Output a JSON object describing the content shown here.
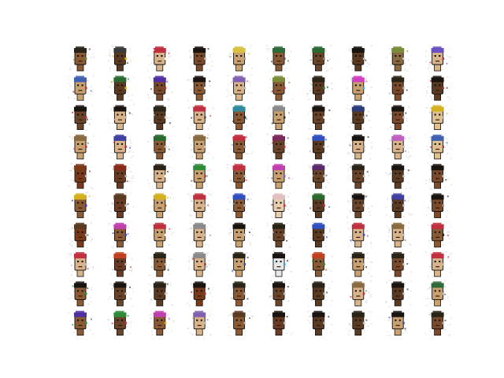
{
  "grid": {
    "rows": 10,
    "cols": 10
  },
  "samples": [
    [
      {
        "skin": "#8a5a35",
        "hair": "#2a2418",
        "accent": "#7a8c3a"
      },
      {
        "skin": "#5b3a22",
        "hair": "#3a3a3a",
        "accent": "#d4b020"
      },
      {
        "skin": "#d9b48a",
        "hair": "#c03040",
        "accent": "#ffffff"
      },
      {
        "skin": "#7a4a2a",
        "hair": "#1a1410",
        "accent": "#c8b89a"
      },
      {
        "skin": "#c9a070",
        "hair": "#d8c040",
        "accent": "#a0a0a0"
      },
      {
        "skin": "#8a5a35",
        "hair": "#2f6b3a",
        "accent": "#505050"
      },
      {
        "skin": "#6a4428",
        "hair": "#2a6a30",
        "accent": "#909090"
      },
      {
        "skin": "#5b3a22",
        "hair": "#1a1410",
        "accent": "#b0b0b0"
      },
      {
        "skin": "#8a6a40",
        "hair": "#7a8c3a",
        "accent": "#d0d0d0"
      },
      {
        "skin": "#d9b48a",
        "hair": "#6a50c0",
        "accent": "#c03040"
      }
    ],
    [
      {
        "skin": "#c9a070",
        "hair": "#4060b0",
        "accent": "#c03040"
      },
      {
        "skin": "#5b3a22",
        "hair": "#2a6a30",
        "accent": "#d4b020"
      },
      {
        "skin": "#7a4a2a",
        "hair": "#5030a0",
        "accent": "#c03040"
      },
      {
        "skin": "#8a5a35",
        "hair": "#1a1410",
        "accent": "#ffffff"
      },
      {
        "skin": "#d9b48a",
        "hair": "#8060b0",
        "accent": "#c0c0c0"
      },
      {
        "skin": "#8a5a35",
        "hair": "#7a8c3a",
        "accent": "#c03040"
      },
      {
        "skin": "#5b3a22",
        "hair": "#2a2418",
        "accent": "#2f8a3a"
      },
      {
        "skin": "#c9a070",
        "hair": "#d040c0",
        "accent": "#40c0d0"
      },
      {
        "skin": "#7a4a2a",
        "hair": "#2a2418",
        "accent": "#b0b0b0"
      },
      {
        "skin": "#5b3a22",
        "hair": "#1a1410",
        "accent": "#c03040"
      }
    ],
    [
      {
        "skin": "#6a4428",
        "hair": "#1a1410",
        "accent": "#c03040"
      },
      {
        "skin": "#d9b48a",
        "hair": "#1a1410",
        "accent": "#c0c0c0"
      },
      {
        "skin": "#5b3a22",
        "hair": "#2a2418",
        "accent": "#d0d0d0"
      },
      {
        "skin": "#d9b48a",
        "hair": "#c03040",
        "accent": "#505050"
      },
      {
        "skin": "#8a5a35",
        "hair": "#2f8a9a",
        "accent": "#202020"
      },
      {
        "skin": "#c9a070",
        "hair": "#8a8a8a",
        "accent": "#303030"
      },
      {
        "skin": "#6a4428",
        "hair": "#1a1410",
        "accent": "#ffffff"
      },
      {
        "skin": "#5b3a22",
        "hair": "#2a3a7a",
        "accent": "#b0b0b0"
      },
      {
        "skin": "#7a4a2a",
        "hair": "#1a1410",
        "accent": "#c0c0c0"
      },
      {
        "skin": "#e0c090",
        "hair": "#d4b020",
        "accent": "#c0c0c0"
      }
    ],
    [
      {
        "skin": "#c9a070",
        "hair": "#8a6a40",
        "accent": "#c03040"
      },
      {
        "skin": "#d9b48a",
        "hair": "#4040a0",
        "accent": "#c03040"
      },
      {
        "skin": "#8a5a35",
        "hair": "#2a6a30",
        "accent": "#c0c0c0"
      },
      {
        "skin": "#c9a070",
        "hair": "#8a6a40",
        "accent": "#d0d0d0"
      },
      {
        "skin": "#8a5a35",
        "hair": "#c03040",
        "accent": "#a0a0a0"
      },
      {
        "skin": "#6a4428",
        "hair": "#7a2a5a",
        "accent": "#c03040"
      },
      {
        "skin": "#5b3a22",
        "hair": "#3050c0",
        "accent": "#c0c0c0"
      },
      {
        "skin": "#d9b48a",
        "hair": "#1a1410",
        "accent": "#909090"
      },
      {
        "skin": "#d9b48a",
        "hair": "#c060c0",
        "accent": "#c0c0c0"
      },
      {
        "skin": "#e0c090",
        "hair": "#4060b0",
        "accent": "#c03040"
      }
    ],
    [
      {
        "skin": "#7a3a1a",
        "hair": "#7a3a1a",
        "accent": "#c0c0c0"
      },
      {
        "skin": "#6a3a22",
        "hair": "#8a2a1a",
        "accent": "#b0b0b0"
      },
      {
        "skin": "#d9b48a",
        "hair": "#2a2418",
        "accent": "#ffffff"
      },
      {
        "skin": "#c9a070",
        "hair": "#2f8a3a",
        "accent": "#c03040"
      },
      {
        "skin": "#8a5a35",
        "hair": "#c03040",
        "accent": "#c0c0c0"
      },
      {
        "skin": "#c9a070",
        "hair": "#c040b0",
        "accent": "#8060b0"
      },
      {
        "skin": "#6a4428",
        "hair": "#5a2a6a",
        "accent": "#c0c0c0"
      },
      {
        "skin": "#6a4428",
        "hair": "#2a2418",
        "accent": "#c0c0c0"
      },
      {
        "skin": "#5b3a22",
        "hair": "#1a1410",
        "accent": "#c0c0c0"
      },
      {
        "skin": "#7a4a2a",
        "hair": "#1a1410",
        "accent": "#d0d0d0"
      }
    ],
    [
      {
        "skin": "#8a5a35",
        "hair": "#d4b020",
        "accent": "#5030a0"
      },
      {
        "skin": "#6a3a22",
        "hair": "#5b3a22",
        "accent": "#c0c0c0"
      },
      {
        "skin": "#c9a070",
        "hair": "#d4b020",
        "accent": "#8a5a35"
      },
      {
        "skin": "#d9b48a",
        "hair": "#c03040",
        "accent": "#c0c0c0"
      },
      {
        "skin": "#8a5a35",
        "hair": "#3050c0",
        "accent": "#c0c0c0"
      },
      {
        "skin": "#e8cfb0",
        "hair": "#e0c0c0",
        "accent": "#c03040"
      },
      {
        "skin": "#5b3a22",
        "hair": "#2a6a30",
        "accent": "#c03040"
      },
      {
        "skin": "#6a4428",
        "hair": "#1a1410",
        "accent": "#c0c0c0"
      },
      {
        "skin": "#5b3a22",
        "hair": "#4040a0",
        "accent": "#c0c0c0"
      },
      {
        "skin": "#7a4a2a",
        "hair": "#1a1410",
        "accent": "#a0a0a0"
      }
    ],
    [
      {
        "skin": "#7a3a1a",
        "hair": "#5b3a22",
        "accent": "#c0c0c0"
      },
      {
        "skin": "#8a5a35",
        "hair": "#c040b0",
        "accent": "#3050c0"
      },
      {
        "skin": "#c9a070",
        "hair": "#c03040",
        "accent": "#ffffff"
      },
      {
        "skin": "#d9b48a",
        "hair": "#8a8a8a",
        "accent": "#c0c0c0"
      },
      {
        "skin": "#c9a070",
        "hair": "#1a1410",
        "accent": "#d0d0d0"
      },
      {
        "skin": "#6a4428",
        "hair": "#2a2418",
        "accent": "#c0c0c0"
      },
      {
        "skin": "#5b3a22",
        "hair": "#3050c0",
        "accent": "#d0d0d0"
      },
      {
        "skin": "#d9b48a",
        "hair": "#c03040",
        "accent": "#3050c0"
      },
      {
        "skin": "#d9b48a",
        "hair": "#8a6a40",
        "accent": "#c0c0c0"
      },
      {
        "skin": "#8a5a35",
        "hair": "#c03040",
        "accent": "#2a2418"
      }
    ],
    [
      {
        "skin": "#d9b48a",
        "hair": "#c03040",
        "accent": "#c0c0c0"
      },
      {
        "skin": "#6a3a22",
        "hair": "#c04020",
        "accent": "#c0c0c0"
      },
      {
        "skin": "#8a5a35",
        "hair": "#2a2418",
        "accent": "#c0c0c0"
      },
      {
        "skin": "#d9b48a",
        "hair": "#8a8a8a",
        "accent": "#c03040"
      },
      {
        "skin": "#c9a070",
        "hair": "#2a2418",
        "accent": "#3050c0"
      },
      {
        "skin": "#e8e8e8",
        "hair": "#1a1410",
        "accent": "#40a0d0"
      },
      {
        "skin": "#8a5a35",
        "hair": "#c04020",
        "accent": "#2f8a3a"
      },
      {
        "skin": "#c9a070",
        "hair": "#2a2418",
        "accent": "#c0c0c0"
      },
      {
        "skin": "#7a4a2a",
        "hair": "#2a2418",
        "accent": "#c0c0c0"
      },
      {
        "skin": "#d9b48a",
        "hair": "#c03040",
        "accent": "#c0c0c0"
      }
    ],
    [
      {
        "skin": "#8a5a35",
        "hair": "#1a1410",
        "accent": "#2f8a3a"
      },
      {
        "skin": "#6a4428",
        "hair": "#1a1410",
        "accent": "#c0c0c0"
      },
      {
        "skin": "#5b3a22",
        "hair": "#2a2418",
        "accent": "#c0c0c0"
      },
      {
        "skin": "#7a3a1a",
        "hair": "#1a1410",
        "accent": "#c03040"
      },
      {
        "skin": "#8a5a35",
        "hair": "#2a2418",
        "accent": "#c0c0c0"
      },
      {
        "skin": "#6a4428",
        "hair": "#1a1410",
        "accent": "#c0c0c0"
      },
      {
        "skin": "#5b3a22",
        "hair": "#2a2418",
        "accent": "#c0c0c0"
      },
      {
        "skin": "#d9b48a",
        "hair": "#8a6a40",
        "accent": "#c03040"
      },
      {
        "skin": "#5b3a22",
        "hair": "#1a1410",
        "accent": "#c0c0c0"
      },
      {
        "skin": "#c9a070",
        "hair": "#2f6b3a",
        "accent": "#c0c0c0"
      }
    ],
    [
      {
        "skin": "#8a5a35",
        "hair": "#5030a0",
        "accent": "#2f8a3a"
      },
      {
        "skin": "#6a4428",
        "hair": "#2f8a3a",
        "accent": "#c03040"
      },
      {
        "skin": "#8a5a35",
        "hair": "#c040b0",
        "accent": "#d4b020"
      },
      {
        "skin": "#d9b48a",
        "hair": "#8060b0",
        "accent": "#c0c0c0"
      },
      {
        "skin": "#8a5a35",
        "hair": "#5b3a22",
        "accent": "#c0c0c0"
      },
      {
        "skin": "#6a3a22",
        "hair": "#1a1410",
        "accent": "#c0c0c0"
      },
      {
        "skin": "#5b3a22",
        "hair": "#1a1410",
        "accent": "#c0c0c0"
      },
      {
        "skin": "#5b3a22",
        "hair": "#2a2418",
        "accent": "#c0c0c0"
      },
      {
        "skin": "#c9a070",
        "hair": "#1a1410",
        "accent": "#3050c0"
      },
      {
        "skin": "#7a4a2a",
        "hair": "#2a2418",
        "accent": "#c0c0c0"
      }
    ]
  ]
}
